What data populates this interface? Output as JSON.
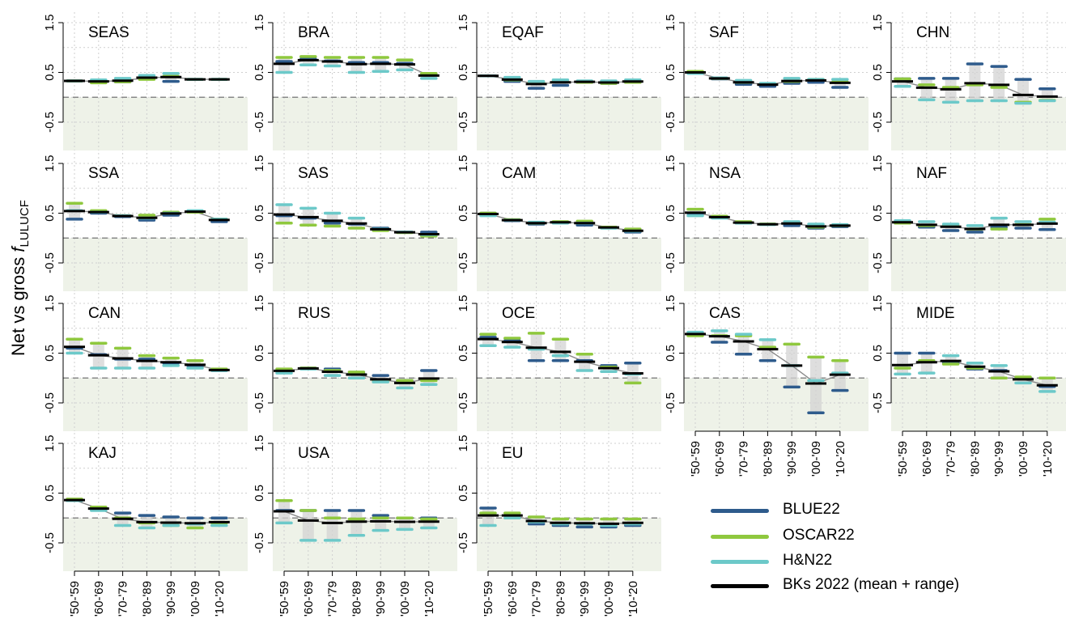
{
  "chart_data": {
    "type": "line",
    "ylabel": {
      "main": "Net vs gross",
      "f": "f",
      "sub": "LULUCF"
    },
    "x": [
      "'50-'59",
      "'60-'69",
      "'70-'79",
      "'80-'89",
      "'90-'99",
      "'00-'09",
      "'10-'20"
    ],
    "ylim": [
      -0.5,
      1.5
    ],
    "yticks": [
      "1.5",
      "0.5",
      "-0.5"
    ],
    "reference_line": 0,
    "grid": true,
    "legend_position": "bottom-right",
    "legend": [
      {
        "key": "BLUE22",
        "label": "BLUE22",
        "color": "#2e5b8c"
      },
      {
        "key": "OSCAR22",
        "label": "OSCAR22",
        "color": "#8fc83e"
      },
      {
        "key": "HN22",
        "label": "H&N22",
        "color": "#6cc9c9"
      },
      {
        "key": "BKs",
        "label": "BKs 2022 (mean + range)",
        "color": "#000000"
      }
    ],
    "panels": [
      {
        "name": "SEAS",
        "BLUE22": [
          0.33,
          0.32,
          0.31,
          0.38,
          0.32,
          0.36,
          0.36
        ],
        "OSCAR22": [
          0.33,
          0.29,
          0.31,
          0.36,
          0.42,
          0.36,
          0.36
        ],
        "HN22": [
          0.33,
          0.35,
          0.38,
          0.44,
          0.48,
          0.36,
          0.36
        ]
      },
      {
        "name": "BRA",
        "BLUE22": [
          0.72,
          0.77,
          0.73,
          0.7,
          0.7,
          0.68,
          0.45
        ],
        "OSCAR22": [
          0.8,
          0.82,
          0.8,
          0.8,
          0.8,
          0.75,
          0.48
        ],
        "HN22": [
          0.5,
          0.65,
          0.63,
          0.5,
          0.52,
          0.55,
          0.38
        ]
      },
      {
        "name": "EQAF",
        "BLUE22": [
          0.43,
          0.32,
          0.18,
          0.24,
          0.3,
          0.28,
          0.3
        ],
        "OSCAR22": [
          0.43,
          0.35,
          0.3,
          0.31,
          0.3,
          0.28,
          0.3
        ],
        "HN22": [
          0.43,
          0.4,
          0.32,
          0.35,
          0.33,
          0.33,
          0.35
        ]
      },
      {
        "name": "SAF",
        "BLUE22": [
          0.5,
          0.37,
          0.26,
          0.22,
          0.28,
          0.3,
          0.2
        ],
        "OSCAR22": [
          0.52,
          0.38,
          0.3,
          0.26,
          0.32,
          0.36,
          0.31
        ],
        "HN22": [
          0.48,
          0.39,
          0.34,
          0.28,
          0.38,
          0.36,
          0.36
        ]
      },
      {
        "name": "CHN",
        "BLUE22": [
          0.37,
          0.38,
          0.38,
          0.67,
          0.62,
          0.36,
          0.17
        ],
        "OSCAR22": [
          0.37,
          0.25,
          0.2,
          0.25,
          0.2,
          -0.1,
          -0.06
        ],
        "HN22": [
          0.22,
          -0.05,
          -0.1,
          -0.07,
          -0.07,
          -0.12,
          -0.07
        ]
      },
      {
        "name": "SSA",
        "BLUE22": [
          0.38,
          0.5,
          0.43,
          0.36,
          0.46,
          0.52,
          0.33
        ],
        "OSCAR22": [
          0.7,
          0.55,
          0.45,
          0.46,
          0.52,
          0.52,
          0.38
        ],
        "HN22": [
          0.55,
          0.52,
          0.45,
          0.4,
          0.5,
          0.55,
          0.38
        ]
      },
      {
        "name": "SAS",
        "BLUE22": [
          0.45,
          0.4,
          0.3,
          0.28,
          0.2,
          0.12,
          0.12
        ],
        "OSCAR22": [
          0.3,
          0.26,
          0.24,
          0.2,
          0.15,
          0.11,
          0.04
        ],
        "HN22": [
          0.67,
          0.6,
          0.5,
          0.4,
          0.18,
          0.12,
          0.07
        ]
      },
      {
        "name": "CAM",
        "BLUE22": [
          0.5,
          0.35,
          0.28,
          0.32,
          0.26,
          0.22,
          0.12
        ],
        "OSCAR22": [
          0.5,
          0.37,
          0.3,
          0.33,
          0.34,
          0.22,
          0.18
        ],
        "HN22": [
          0.45,
          0.36,
          0.32,
          0.3,
          0.3,
          0.2,
          0.14
        ]
      },
      {
        "name": "NSA",
        "BLUE22": [
          0.5,
          0.42,
          0.3,
          0.28,
          0.25,
          0.2,
          0.23
        ],
        "OSCAR22": [
          0.58,
          0.44,
          0.33,
          0.28,
          0.3,
          0.22,
          0.25
        ],
        "HN22": [
          0.45,
          0.4,
          0.3,
          0.27,
          0.33,
          0.28,
          0.27
        ]
      },
      {
        "name": "NAF",
        "BLUE22": [
          0.3,
          0.22,
          0.15,
          0.12,
          0.22,
          0.2,
          0.17
        ],
        "OSCAR22": [
          0.3,
          0.25,
          0.25,
          0.18,
          0.18,
          0.27,
          0.38
        ],
        "HN22": [
          0.35,
          0.33,
          0.28,
          0.25,
          0.4,
          0.33,
          0.32
        ]
      },
      {
        "name": "CAN",
        "BLUE22": [
          0.6,
          0.47,
          0.38,
          0.38,
          0.3,
          0.25,
          0.15
        ],
        "OSCAR22": [
          0.78,
          0.7,
          0.6,
          0.45,
          0.4,
          0.35,
          0.18
        ],
        "HN22": [
          0.5,
          0.2,
          0.2,
          0.2,
          0.25,
          0.2,
          0.15
        ]
      },
      {
        "name": "RUS",
        "BLUE22": [
          0.15,
          0.2,
          0.18,
          0.09,
          0.05,
          -0.05,
          0.15
        ],
        "OSCAR22": [
          0.18,
          0.2,
          0.15,
          0.12,
          -0.05,
          -0.05,
          -0.05
        ],
        "HN22": [
          0.1,
          0.18,
          0.05,
          0.0,
          -0.08,
          -0.2,
          -0.13
        ]
      },
      {
        "name": "OCE",
        "BLUE22": [
          0.82,
          0.75,
          0.35,
          0.35,
          0.35,
          0.25,
          0.3
        ],
        "OSCAR22": [
          0.88,
          0.8,
          0.9,
          0.78,
          0.48,
          0.22,
          -0.1
        ],
        "HN22": [
          0.65,
          0.62,
          0.58,
          0.45,
          0.15,
          0.13,
          0.08
        ]
      },
      {
        "name": "CAS",
        "BLUE22": [
          0.88,
          0.72,
          0.48,
          0.35,
          -0.18,
          -0.7,
          -0.25
        ],
        "OSCAR22": [
          0.85,
          0.85,
          0.85,
          0.62,
          0.68,
          0.42,
          0.35
        ],
        "HN22": [
          0.92,
          0.95,
          0.88,
          0.77,
          0.25,
          -0.05,
          0.1
        ]
      },
      {
        "name": "MIDE",
        "BLUE22": [
          0.5,
          0.5,
          0.3,
          0.18,
          0.15,
          0.0,
          -0.17
        ],
        "OSCAR22": [
          0.2,
          0.35,
          0.28,
          0.2,
          0.0,
          0.02,
          0.0
        ],
        "HN22": [
          0.08,
          0.1,
          0.45,
          0.3,
          0.25,
          -0.1,
          -0.27
        ]
      },
      {
        "name": "KAJ",
        "BLUE22": [
          0.35,
          0.2,
          0.1,
          0.05,
          0.02,
          0.0,
          0.0
        ],
        "OSCAR22": [
          0.38,
          0.22,
          0.0,
          -0.1,
          -0.15,
          -0.2,
          -0.1
        ],
        "HN22": [
          0.35,
          0.15,
          -0.15,
          -0.2,
          -0.15,
          -0.12,
          -0.15
        ]
      },
      {
        "name": "USA",
        "BLUE22": [
          0.15,
          0.15,
          0.15,
          0.15,
          0.05,
          0.0,
          0.0
        ],
        "OSCAR22": [
          0.35,
          0.15,
          0.0,
          -0.02,
          0.0,
          0.0,
          -0.02
        ],
        "HN22": [
          -0.1,
          -0.45,
          -0.45,
          -0.35,
          -0.25,
          -0.23,
          -0.2
        ]
      },
      {
        "name": "EU",
        "BLUE22": [
          0.2,
          0.05,
          -0.12,
          -0.15,
          -0.18,
          -0.18,
          -0.15
        ],
        "OSCAR22": [
          0.1,
          0.1,
          0.02,
          -0.02,
          -0.02,
          -0.02,
          -0.02
        ],
        "HN22": [
          -0.15,
          0.0,
          -0.08,
          -0.12,
          -0.12,
          -0.15,
          -0.12
        ]
      }
    ]
  }
}
